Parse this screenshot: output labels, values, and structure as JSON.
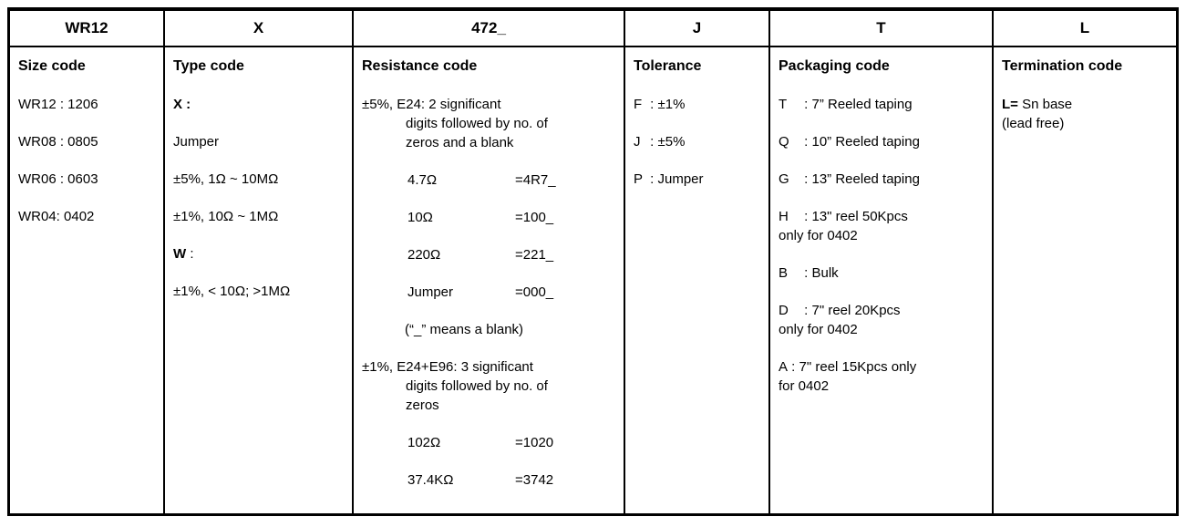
{
  "header_codes": [
    "WR12",
    "X",
    "472_",
    "J",
    "T",
    "L"
  ],
  "columns": {
    "size": {
      "title": "Size code",
      "items": [
        "WR12 : 1206",
        "WR08 : 0805",
        "WR06 : 0603",
        "WR04: 0402"
      ]
    },
    "type": {
      "title": "Type code",
      "items": [
        {
          "bold": "X :"
        },
        "Jumper",
        "±5%, 1Ω ~ 10MΩ",
        "±1%, 10Ω ~ 1MΩ",
        {
          "bold": "W",
          "text": " :"
        },
        "±1%, < 10Ω; >1MΩ"
      ]
    },
    "resistance": {
      "title": "Resistance code",
      "items": [
        {
          "kind": "hang",
          "text": "±5%, E24: 2 significant\ndigits followed by no. of\nzeros and a blank"
        },
        {
          "kind": "pair",
          "value": "4.7Ω",
          "code": "=4R7_"
        },
        {
          "kind": "pair",
          "value": "10Ω",
          "code": "=100_"
        },
        {
          "kind": "pair",
          "value": "220Ω",
          "code": "=221_"
        },
        {
          "kind": "pair",
          "value": "Jumper",
          "code": "=000_"
        },
        {
          "kind": "note",
          "text": "(“_” means a blank)"
        },
        {
          "kind": "hang",
          "text": "±1%, E24+E96: 3 significant\ndigits followed by no. of\nzeros"
        },
        {
          "kind": "pair",
          "value": "102Ω",
          "code": "=1020"
        },
        {
          "kind": "pair",
          "value": "37.4KΩ",
          "code": "=3742"
        }
      ]
    },
    "tolerance": {
      "title": "Tolerance",
      "items": [
        {
          "key": "F",
          "desc": "±1%"
        },
        {
          "key": "J",
          "desc": "±5%"
        },
        {
          "key": "P",
          "desc": "Jumper"
        }
      ]
    },
    "packaging": {
      "title": "Packaging code",
      "items": [
        {
          "key": "T",
          "desc": "7” Reeled taping"
        },
        {
          "key": "Q",
          "desc": "10” Reeled taping"
        },
        {
          "key": "G",
          "desc": "13” Reeled taping"
        },
        {
          "key": "H",
          "desc": "13\" reel 50Kpcs\nonly for 0402"
        },
        {
          "key": "B",
          "desc": "Bulk"
        },
        {
          "key": "D",
          "desc": "7\" reel 20Kpcs\nonly for 0402"
        },
        {
          "key": "A",
          "desc": "7\" reel 15Kpcs only\nfor 0402",
          "tight": true
        }
      ]
    },
    "termination": {
      "title": "Termination code",
      "items": [
        {
          "bold": "L=",
          "text": " Sn base\n(lead free)"
        }
      ]
    }
  }
}
